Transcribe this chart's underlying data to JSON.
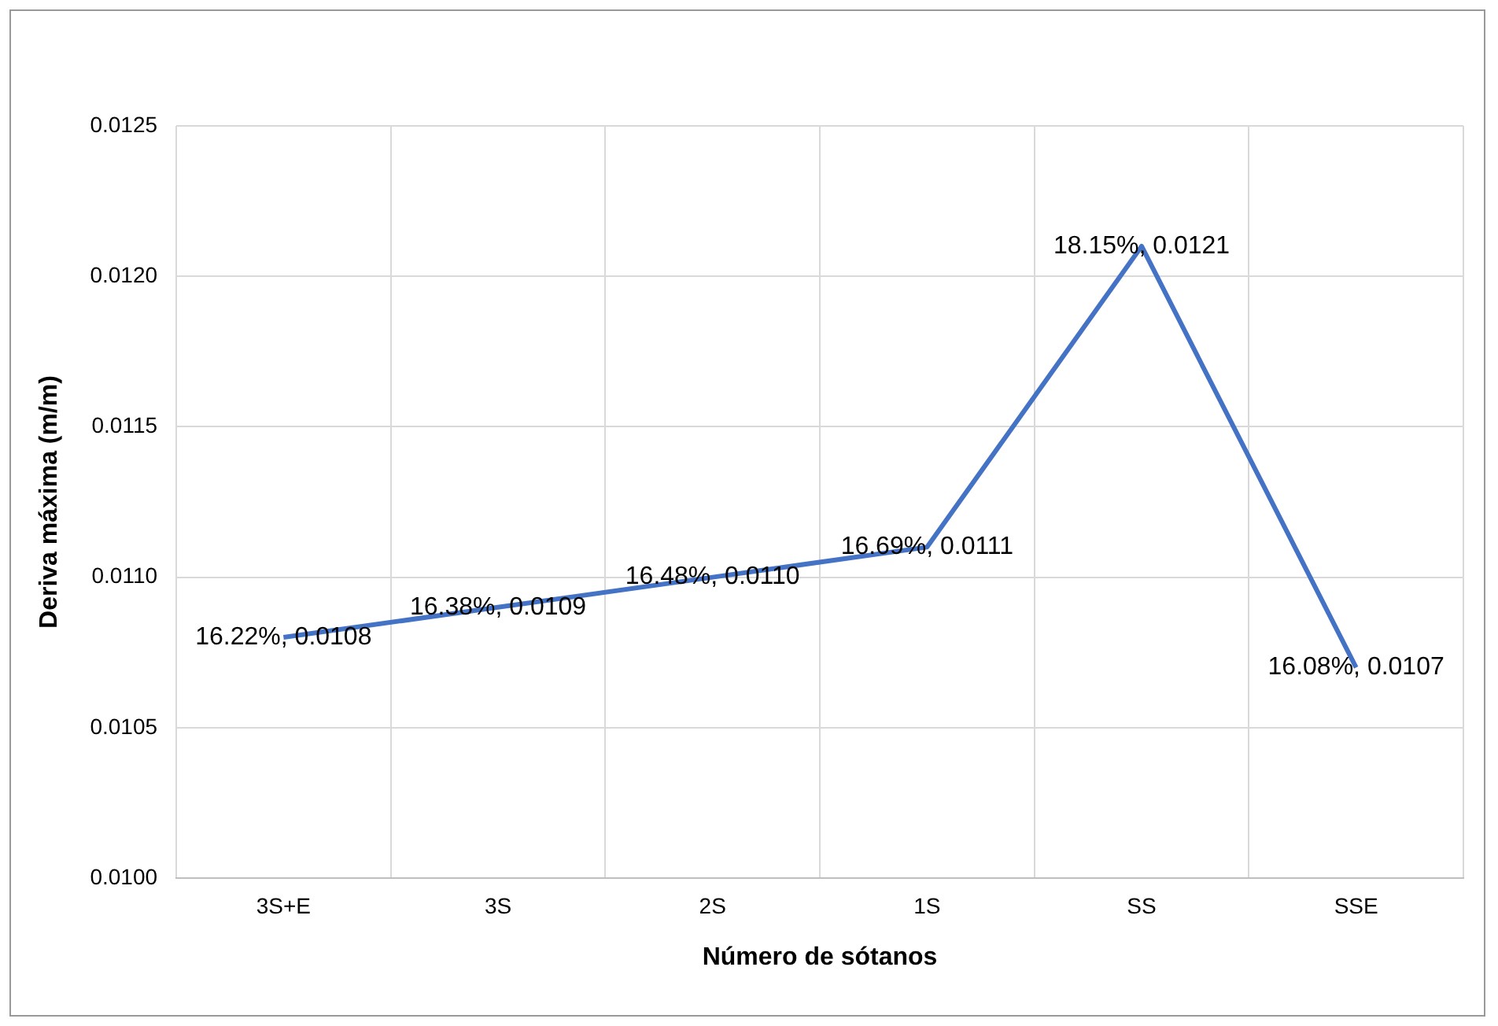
{
  "chart_data": {
    "type": "line",
    "xlabel": "Número de sótanos",
    "ylabel": "Deriva máxima (m/m)",
    "categories": [
      "3S+E",
      "3S",
      "2S",
      "1S",
      "SS",
      "SSE"
    ],
    "series": [
      {
        "color": "#4472c4",
        "values": [
          0.0108,
          0.0109,
          0.011,
          0.0111,
          0.0121,
          0.0107
        ],
        "value_labels": [
          "16.22%, 0.0108",
          "16.38%, 0.0109",
          "16.48%, 0.0110",
          "16.69%, 0.0111",
          "18.15%, 0.0121",
          "16.08%, 0.0107"
        ]
      }
    ],
    "ylim": [
      0.01,
      0.0125
    ],
    "yticks": [
      {
        "value": 0.01,
        "label": "0.0100"
      },
      {
        "value": 0.0105,
        "label": "0.0105"
      },
      {
        "value": 0.011,
        "label": "0.0110"
      },
      {
        "value": 0.0115,
        "label": "0.0115"
      },
      {
        "value": 0.012,
        "label": "0.0120"
      },
      {
        "value": 0.0125,
        "label": "0.0125"
      }
    ],
    "grid": true,
    "legend": false,
    "marker": "none",
    "line_style": "solid"
  }
}
